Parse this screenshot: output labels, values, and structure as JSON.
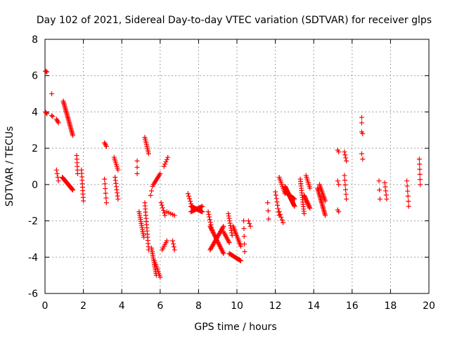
{
  "chart_data": {
    "type": "scatter",
    "title": "Day 102 of 2021, Sidereal Day-to-day VTEC variation (SDTVAR) for receiver glps",
    "xlabel": "GPS time / hours",
    "ylabel": "SDTVAR / TECUs",
    "xlim": [
      0,
      20
    ],
    "ylim": [
      -6,
      8
    ],
    "xticks": [
      "0",
      "2",
      "4",
      "6",
      "8",
      "10",
      "12",
      "14",
      "16",
      "18",
      "20"
    ],
    "yticks": [
      "-6",
      "-4",
      "-2",
      "0",
      "2",
      "4",
      "6",
      "8"
    ],
    "grid": true,
    "marker": "plus",
    "color": "#ff0000",
    "segments": [
      {
        "x0": 0.02,
        "y0": 6.25,
        "x1": 0.1,
        "y1": 6.2,
        "n": 3
      },
      {
        "x0": 0.02,
        "y0": 4.0,
        "x1": 0.1,
        "y1": 3.9,
        "n": 3
      },
      {
        "x0": 0.35,
        "y0": 5.0,
        "x1": 0.37,
        "y1": 5.0,
        "n": 1
      },
      {
        "x0": 0.35,
        "y0": 3.8,
        "x1": 0.4,
        "y1": 3.75,
        "n": 2
      },
      {
        "x0": 0.6,
        "y0": 3.6,
        "x1": 0.7,
        "y1": 3.4,
        "n": 4
      },
      {
        "x0": 0.6,
        "y0": 0.8,
        "x1": 0.7,
        "y1": 0.2,
        "n": 4
      },
      {
        "x0": 0.95,
        "y0": 4.6,
        "x1": 1.45,
        "y1": 2.7,
        "n": 28
      },
      {
        "x0": 0.9,
        "y0": 0.4,
        "x1": 1.45,
        "y1": -0.3,
        "n": 30
      },
      {
        "x0": 1.65,
        "y0": 1.6,
        "x1": 1.7,
        "y1": 0.6,
        "n": 6
      },
      {
        "x0": 1.9,
        "y0": 0.8,
        "x1": 2.0,
        "y1": -0.9,
        "n": 10
      },
      {
        "x0": 3.1,
        "y0": 2.3,
        "x1": 3.2,
        "y1": 2.1,
        "n": 4
      },
      {
        "x0": 3.1,
        "y0": 0.3,
        "x1": 3.2,
        "y1": -1.0,
        "n": 6
      },
      {
        "x0": 3.6,
        "y0": 1.5,
        "x1": 3.8,
        "y1": 0.8,
        "n": 8
      },
      {
        "x0": 3.65,
        "y0": 0.4,
        "x1": 3.8,
        "y1": -0.8,
        "n": 8
      },
      {
        "x0": 4.8,
        "y0": 1.3,
        "x1": 4.8,
        "y1": 0.6,
        "n": 3
      },
      {
        "x0": 4.9,
        "y0": -1.5,
        "x1": 5.15,
        "y1": -2.9,
        "n": 14
      },
      {
        "x0": 5.2,
        "y0": 2.6,
        "x1": 5.4,
        "y1": 1.7,
        "n": 10
      },
      {
        "x0": 5.2,
        "y0": -1.0,
        "x1": 5.4,
        "y1": -3.6,
        "n": 16
      },
      {
        "x0": 5.5,
        "y0": -0.6,
        "x1": 5.6,
        "y1": -0.1,
        "n": 3
      },
      {
        "x0": 5.55,
        "y0": -3.5,
        "x1": 5.8,
        "y1": -5.0,
        "n": 16
      },
      {
        "x0": 5.7,
        "y0": -4.2,
        "x1": 6.0,
        "y1": -5.1,
        "n": 10
      },
      {
        "x0": 5.65,
        "y0": 0.0,
        "x1": 6.0,
        "y1": 0.6,
        "n": 10
      },
      {
        "x0": 6.05,
        "y0": -1.0,
        "x1": 6.25,
        "y1": -1.7,
        "n": 6
      },
      {
        "x0": 6.1,
        "y0": -3.6,
        "x1": 6.35,
        "y1": -3.1,
        "n": 6
      },
      {
        "x0": 6.2,
        "y0": 1.0,
        "x1": 6.4,
        "y1": 1.5,
        "n": 5
      },
      {
        "x0": 6.35,
        "y0": -1.5,
        "x1": 6.75,
        "y1": -1.7,
        "n": 5
      },
      {
        "x0": 6.65,
        "y0": -3.1,
        "x1": 6.75,
        "y1": -3.6,
        "n": 4
      },
      {
        "x0": 7.45,
        "y0": -0.5,
        "x1": 7.65,
        "y1": -1.2,
        "n": 6
      },
      {
        "x0": 7.6,
        "y0": -1.2,
        "x1": 8.2,
        "y1": -1.5,
        "n": 24
      },
      {
        "x0": 7.6,
        "y0": -1.5,
        "x1": 8.2,
        "y1": -1.2,
        "n": 14
      },
      {
        "x0": 8.5,
        "y0": -1.5,
        "x1": 8.7,
        "y1": -2.5,
        "n": 8
      },
      {
        "x0": 8.6,
        "y0": -2.3,
        "x1": 9.3,
        "y1": -3.8,
        "n": 26
      },
      {
        "x0": 8.6,
        "y0": -3.6,
        "x1": 9.3,
        "y1": -2.3,
        "n": 24
      },
      {
        "x0": 9.3,
        "y0": -2.6,
        "x1": 9.6,
        "y1": -3.2,
        "n": 10
      },
      {
        "x0": 9.55,
        "y0": -1.6,
        "x1": 9.75,
        "y1": -2.8,
        "n": 10
      },
      {
        "x0": 9.6,
        "y0": -3.8,
        "x1": 10.2,
        "y1": -4.2,
        "n": 16
      },
      {
        "x0": 9.8,
        "y0": -2.3,
        "x1": 10.2,
        "y1": -3.4,
        "n": 14
      },
      {
        "x0": 10.35,
        "y0": -2.0,
        "x1": 10.4,
        "y1": -3.7,
        "n": 5
      },
      {
        "x0": 10.6,
        "y0": -2.0,
        "x1": 10.7,
        "y1": -2.3,
        "n": 3
      },
      {
        "x0": 11.6,
        "y0": -1.0,
        "x1": 11.65,
        "y1": -1.9,
        "n": 3
      },
      {
        "x0": 12.0,
        "y0": -0.4,
        "x1": 12.2,
        "y1": -1.7,
        "n": 8
      },
      {
        "x0": 12.2,
        "y0": -1.5,
        "x1": 12.4,
        "y1": -2.1,
        "n": 5
      },
      {
        "x0": 12.2,
        "y0": 0.4,
        "x1": 12.5,
        "y1": -0.5,
        "n": 10
      },
      {
        "x0": 12.5,
        "y0": -0.1,
        "x1": 13.0,
        "y1": -1.2,
        "n": 30
      },
      {
        "x0": 12.5,
        "y0": -0.4,
        "x1": 13.0,
        "y1": -0.8,
        "n": 18
      },
      {
        "x0": 13.3,
        "y0": 0.3,
        "x1": 13.5,
        "y1": -1.6,
        "n": 16
      },
      {
        "x0": 13.5,
        "y0": -0.6,
        "x1": 13.8,
        "y1": -1.3,
        "n": 14
      },
      {
        "x0": 13.6,
        "y0": 0.5,
        "x1": 13.8,
        "y1": -0.2,
        "n": 8
      },
      {
        "x0": 14.2,
        "y0": -0.2,
        "x1": 14.6,
        "y1": -1.7,
        "n": 22
      },
      {
        "x0": 14.3,
        "y0": 0.0,
        "x1": 14.6,
        "y1": -0.9,
        "n": 12
      },
      {
        "x0": 15.25,
        "y0": 1.9,
        "x1": 15.3,
        "y1": 1.8,
        "n": 2
      },
      {
        "x0": 15.25,
        "y0": 0.2,
        "x1": 15.3,
        "y1": 0.0,
        "n": 2
      },
      {
        "x0": 15.25,
        "y0": -1.4,
        "x1": 15.3,
        "y1": -1.5,
        "n": 2
      },
      {
        "x0": 15.6,
        "y0": 1.8,
        "x1": 15.7,
        "y1": 1.3,
        "n": 4
      },
      {
        "x0": 15.6,
        "y0": 0.5,
        "x1": 15.7,
        "y1": -0.8,
        "n": 6
      },
      {
        "x0": 16.5,
        "y0": 3.7,
        "x1": 16.5,
        "y1": 3.4,
        "n": 2
      },
      {
        "x0": 16.5,
        "y0": 2.9,
        "x1": 16.55,
        "y1": 2.8,
        "n": 2
      },
      {
        "x0": 16.5,
        "y0": 1.7,
        "x1": 16.55,
        "y1": 1.4,
        "n": 2
      },
      {
        "x0": 17.4,
        "y0": 0.2,
        "x1": 17.45,
        "y1": -0.8,
        "n": 3
      },
      {
        "x0": 17.7,
        "y0": 0.1,
        "x1": 17.8,
        "y1": -0.8,
        "n": 5
      },
      {
        "x0": 18.85,
        "y0": 0.2,
        "x1": 18.95,
        "y1": -1.2,
        "n": 6
      },
      {
        "x0": 19.5,
        "y0": 1.4,
        "x1": 19.55,
        "y1": 0.0,
        "n": 6
      }
    ]
  }
}
